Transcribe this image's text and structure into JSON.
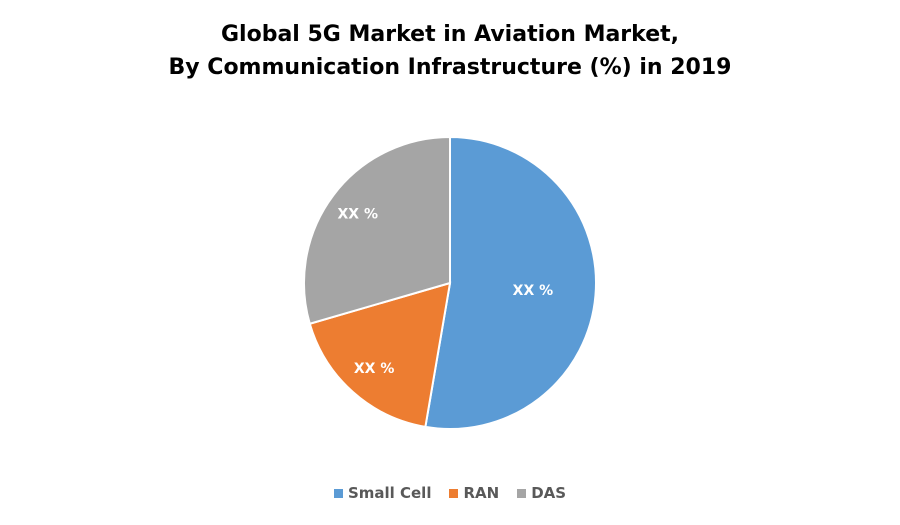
{
  "chart_data": {
    "type": "pie",
    "title_line1": "Global 5G Market in Aviation Market,",
    "title_line2": "By Communication Infrastructure (%) in 2019",
    "categories": [
      "Small Cell",
      "RAN",
      "DAS"
    ],
    "values": [
      52.7,
      17.8,
      29.5
    ],
    "data_labels": [
      "XX %",
      "XX %",
      "XX %"
    ],
    "colors": [
      "#5B9BD5",
      "#ED7D31",
      "#A5A5A5"
    ],
    "start_angle_deg": 0,
    "direction": "clockwise",
    "legend_position": "bottom"
  }
}
